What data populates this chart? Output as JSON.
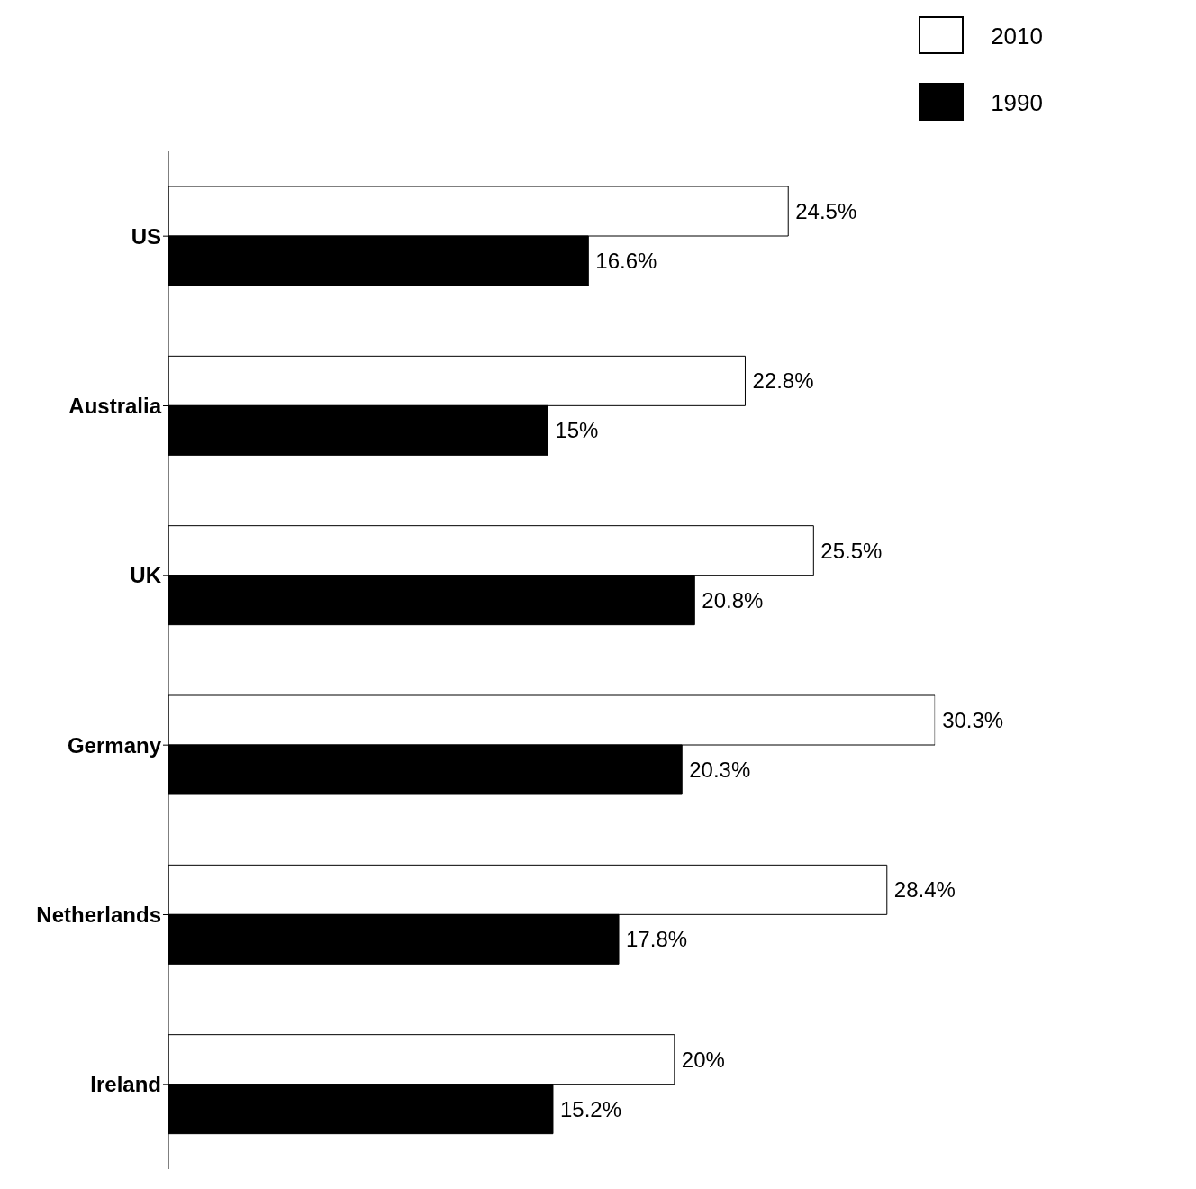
{
  "chart_data": {
    "type": "bar",
    "orientation": "horizontal",
    "categories": [
      "US",
      "Australia",
      "UK",
      "Germany",
      "Netherlands",
      "Ireland"
    ],
    "series": [
      {
        "name": "2010",
        "color": "#ffffff",
        "values": [
          24.5,
          22.8,
          25.5,
          30.3,
          28.4,
          20
        ],
        "value_labels": [
          "24.5%",
          "22.8%",
          "25.5%",
          "30.3%",
          "28.4%",
          "20%"
        ]
      },
      {
        "name": "1990",
        "color": "#000000",
        "values": [
          16.6,
          15,
          20.8,
          20.3,
          17.8,
          15.2
        ],
        "value_labels": [
          "16.6%",
          "15%",
          "20.8%",
          "20.3%",
          "17.8%",
          "15.2%"
        ]
      }
    ],
    "legend": "top right",
    "grid": false
  }
}
